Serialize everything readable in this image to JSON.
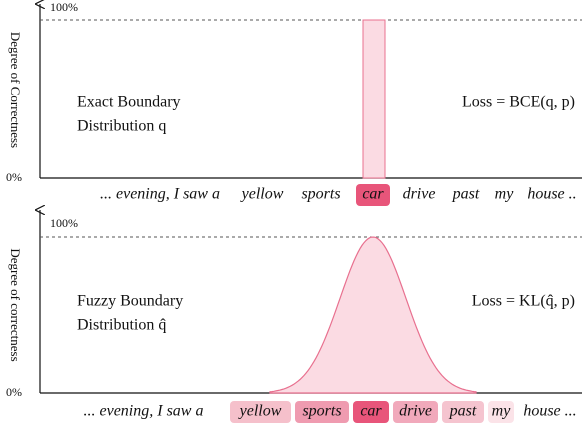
{
  "panels": [
    {
      "axis_label": "Degree of Correctness",
      "top_tick": "100%",
      "bottom_tick": "0%",
      "name_line1": "Exact Boundary",
      "name_line2": "Distribution q",
      "loss": "Loss = BCE(q, p)",
      "words": [
        "... evening, I saw a",
        "yellow",
        "sports",
        "car",
        "drive",
        "past",
        "my",
        "house .."
      ]
    },
    {
      "axis_label": "Degree of correctness",
      "top_tick": "100%",
      "bottom_tick": "0%",
      "name_line1": "Fuzzy Boundary",
      "name_line2": "Distribution q̂",
      "loss": "Loss = KL(q̂, p)",
      "words": [
        "... evening, I saw a",
        "yellow",
        "sports",
        "car",
        "drive",
        "past",
        "my",
        "house ..."
      ]
    }
  ]
}
